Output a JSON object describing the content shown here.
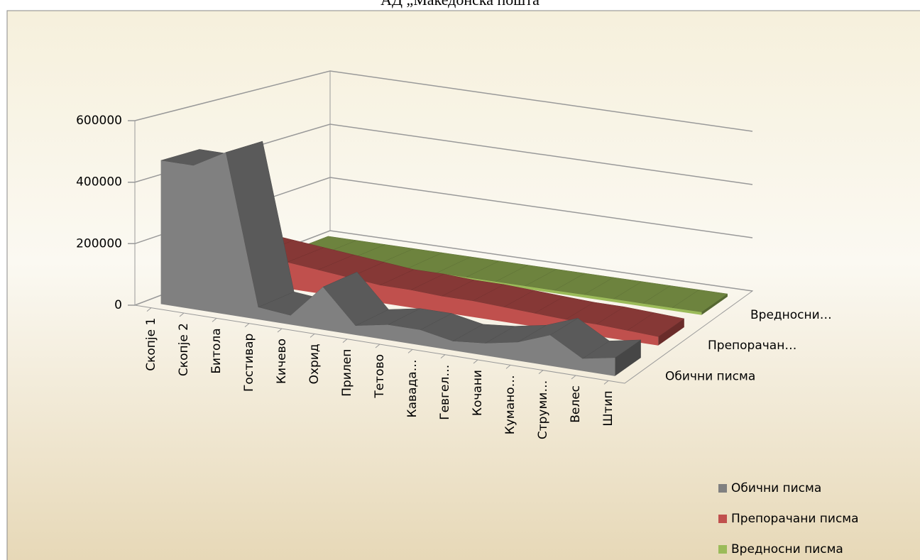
{
  "chart_data": {
    "type": "area3d",
    "title": "АД „Македонска пошта",
    "categories": [
      "Скопје 1",
      "Скопје 2",
      "Битола",
      "Гостивар",
      "Кичево",
      "Охрид",
      "Прилеп",
      "Тетово",
      "Кавада…",
      "Гевгел…",
      "Кочани",
      "Кумано…",
      "Струми…",
      "Велес",
      "Штип"
    ],
    "series": [
      {
        "name": "Обични писма",
        "color": "#808080",
        "values": [
          470000,
          470000,
          530000,
          40000,
          30000,
          140000,
          30000,
          50000,
          50000,
          30000,
          40000,
          60000,
          100000,
          40000,
          60000
        ]
      },
      {
        "name": "Препорачани писма",
        "color": "#c0504d",
        "values": [
          110000,
          100000,
          90000,
          80000,
          70000,
          60000,
          60000,
          55000,
          55000,
          50000,
          45000,
          40000,
          40000,
          35000,
          30000
        ]
      },
      {
        "name": "Вредносни писма",
        "color": "#9bbb59",
        "values": [
          10000,
          10000,
          10000,
          10000,
          10000,
          10000,
          10000,
          10000,
          10000,
          10000,
          10000,
          10000,
          10000,
          10000,
          10000
        ]
      }
    ],
    "depth_labels": [
      "Обични писма",
      "Препорачан…",
      "Вредносни…"
    ],
    "ylim": [
      0,
      600000
    ],
    "yticks": [
      0,
      200000,
      400000,
      600000
    ],
    "grid": true,
    "legend": "bottom-right"
  }
}
